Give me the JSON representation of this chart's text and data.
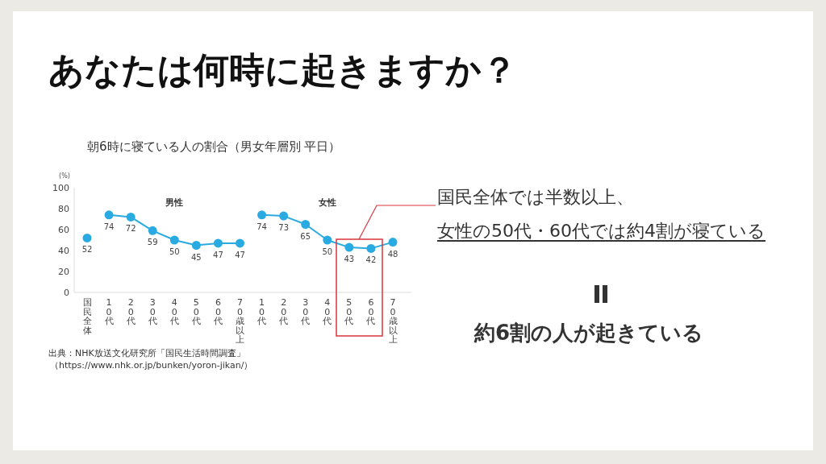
{
  "chart_data": {
    "type": "line",
    "title": "あなたは何時に起きますか？",
    "subtitle": "朝6時に寝ている人の割合（男女年層別 平日）",
    "ylabel": "(%)",
    "categories": [
      "国民全体",
      "10代",
      "20代",
      "30代",
      "40代",
      "50代",
      "60代",
      "70歳以上",
      "10代",
      "20代",
      "30代",
      "40代",
      "50代",
      "60代",
      "70歳以上"
    ],
    "series": [
      {
        "color": "#29abe2",
        "values": [
          52,
          null,
          null,
          null,
          null,
          null,
          null,
          null,
          null,
          null,
          null,
          null,
          null,
          null,
          null
        ]
      },
      {
        "name": "男性",
        "color": "#29abe2",
        "values": [
          null,
          74,
          72,
          59,
          50,
          45,
          47,
          47,
          null,
          null,
          null,
          null,
          null,
          null,
          null
        ]
      },
      {
        "name": "女性",
        "color": "#29abe2",
        "values": [
          null,
          null,
          null,
          null,
          null,
          null,
          null,
          null,
          74,
          73,
          65,
          50,
          43,
          42,
          48
        ]
      }
    ],
    "ylim": [
      0,
      100
    ],
    "yticks": [
      0,
      20,
      40,
      60,
      80,
      100
    ],
    "data_labels": true,
    "marker": "circle",
    "line_style": "solid",
    "annotations": [
      "国民全体では半数以上、",
      "女性の50代・60代では約4割が寝ている",
      "約6割の人が起きている",
      "出典：NHK放送文化研究所「国民生活時間調査」",
      "（https://www.nhk.or.jp/bunken/yoron-jikan/）"
    ]
  }
}
